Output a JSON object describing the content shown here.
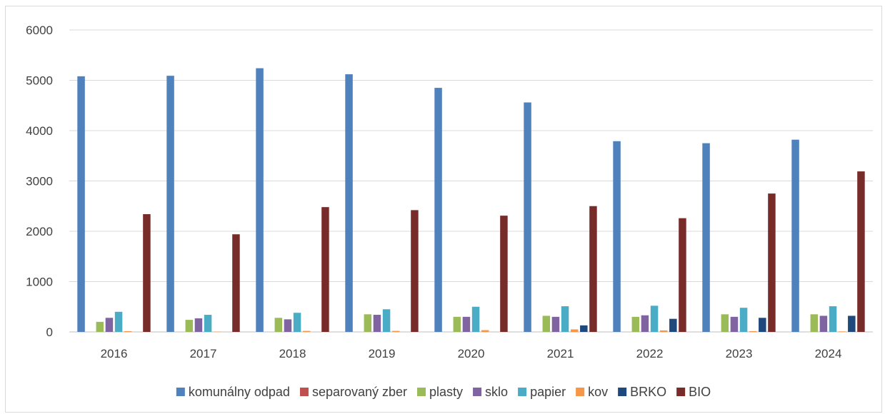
{
  "chart_data": {
    "type": "bar",
    "title": "",
    "xlabel": "",
    "ylabel": "",
    "ylim": [
      0,
      6000
    ],
    "yticks": [
      0,
      1000,
      2000,
      3000,
      4000,
      5000,
      6000
    ],
    "grid": true,
    "legend_position": "bottom",
    "categories": [
      "2016",
      "2017",
      "2018",
      "2019",
      "2020",
      "2021",
      "2022",
      "2023",
      "2024"
    ],
    "series": [
      {
        "name": "komunálny odpad",
        "color": "#4F81BD",
        "values": [
          5080,
          5090,
          5240,
          5120,
          4850,
          4560,
          3790,
          3750,
          3820
        ]
      },
      {
        "name": "separovaný zber",
        "color": "#C0504D",
        "values": [
          0,
          0,
          0,
          0,
          0,
          0,
          0,
          0,
          0
        ]
      },
      {
        "name": "plasty",
        "color": "#9BBB59",
        "values": [
          200,
          240,
          280,
          350,
          300,
          320,
          300,
          350,
          350
        ]
      },
      {
        "name": "sklo",
        "color": "#8064A2",
        "values": [
          280,
          270,
          250,
          340,
          300,
          300,
          330,
          300,
          320
        ]
      },
      {
        "name": "papier",
        "color": "#4BACC6",
        "values": [
          400,
          340,
          380,
          450,
          500,
          510,
          520,
          480,
          510
        ]
      },
      {
        "name": "kov",
        "color": "#F79646",
        "values": [
          15,
          5,
          20,
          20,
          35,
          50,
          30,
          15,
          10
        ]
      },
      {
        "name": "BRKO",
        "color": "#1F497D",
        "values": [
          0,
          0,
          0,
          0,
          0,
          130,
          260,
          280,
          320
        ]
      },
      {
        "name": "BIO",
        "color": "#772C2A",
        "values": [
          2340,
          1940,
          2480,
          2420,
          2310,
          2500,
          2260,
          2750,
          3190
        ]
      }
    ]
  }
}
